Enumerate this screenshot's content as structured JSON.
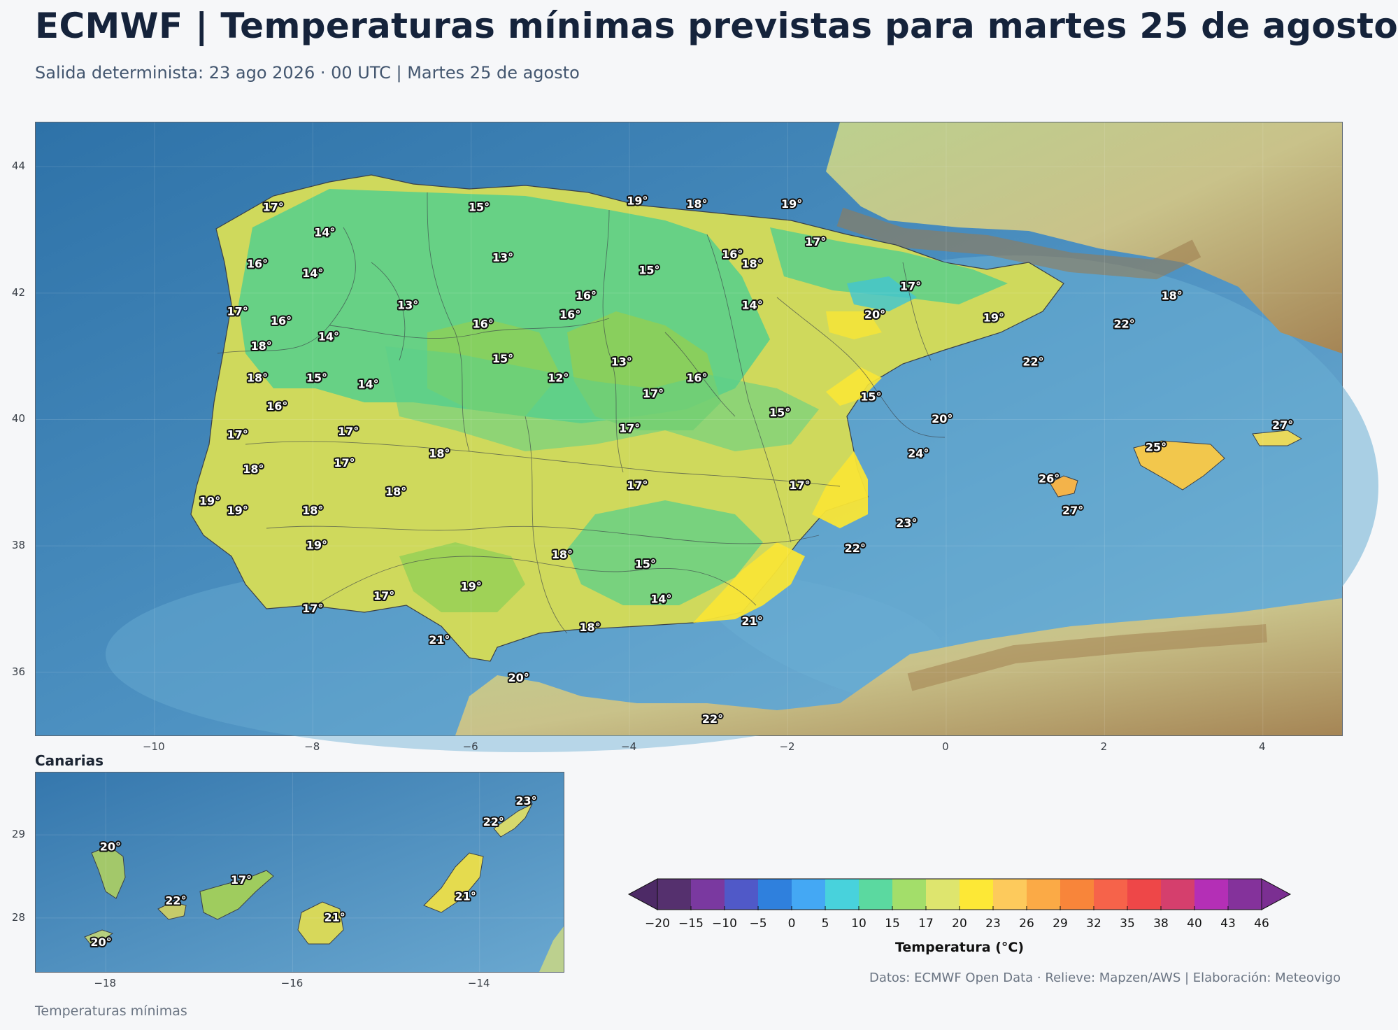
{
  "header": {
    "title": "ECMWF | Temperaturas mínimas previstas para martes 25 de agosto",
    "subtitle": "Salida determinista: 23 ago 2026 · 00 UTC  |  Martes 25 de agosto"
  },
  "main_map": {
    "extent": {
      "lon": [
        -11.5,
        5.0
      ],
      "lat": [
        35.0,
        44.7
      ]
    },
    "x_ticks": [
      {
        "value": -10,
        "label": "−10"
      },
      {
        "value": -8,
        "label": "−8"
      },
      {
        "value": -6,
        "label": "−6"
      },
      {
        "value": -4,
        "label": "−4"
      },
      {
        "value": -2,
        "label": "−2"
      },
      {
        "value": 0,
        "label": "0"
      },
      {
        "value": 2,
        "label": "2"
      },
      {
        "value": 4,
        "label": "4"
      }
    ],
    "y_ticks": [
      {
        "value": 36,
        "label": "36"
      },
      {
        "value": 38,
        "label": "38"
      },
      {
        "value": 40,
        "label": "40"
      },
      {
        "value": 42,
        "label": "42"
      },
      {
        "value": 44,
        "label": "44"
      }
    ],
    "stations": [
      {
        "lon": -8.5,
        "lat": 43.35,
        "label": "17°"
      },
      {
        "lon": -5.9,
        "lat": 43.35,
        "label": "15°"
      },
      {
        "lon": -3.9,
        "lat": 43.45,
        "label": "19°"
      },
      {
        "lon": -3.15,
        "lat": 43.4,
        "label": "18°"
      },
      {
        "lon": -1.95,
        "lat": 43.4,
        "label": "19°"
      },
      {
        "lon": -7.85,
        "lat": 42.95,
        "label": "14°"
      },
      {
        "lon": -5.6,
        "lat": 42.55,
        "label": "13°"
      },
      {
        "lon": -2.7,
        "lat": 42.6,
        "label": "16°"
      },
      {
        "lon": -2.45,
        "lat": 42.45,
        "label": "18°"
      },
      {
        "lon": -1.65,
        "lat": 42.8,
        "label": "17°"
      },
      {
        "lon": -8.7,
        "lat": 42.45,
        "label": "16°"
      },
      {
        "lon": -8.0,
        "lat": 42.3,
        "label": "14°"
      },
      {
        "lon": -3.75,
        "lat": 42.35,
        "label": "15°"
      },
      {
        "lon": -4.55,
        "lat": 41.95,
        "label": "16°"
      },
      {
        "lon": -0.45,
        "lat": 42.1,
        "label": "17°"
      },
      {
        "lon": 2.85,
        "lat": 41.95,
        "label": "18°"
      },
      {
        "lon": -8.95,
        "lat": 41.7,
        "label": "17°"
      },
      {
        "lon": -8.4,
        "lat": 41.55,
        "label": "16°"
      },
      {
        "lon": -6.8,
        "lat": 41.8,
        "label": "13°"
      },
      {
        "lon": -5.85,
        "lat": 41.5,
        "label": "16°"
      },
      {
        "lon": -4.75,
        "lat": 41.65,
        "label": "16°"
      },
      {
        "lon": -2.45,
        "lat": 41.8,
        "label": "14°"
      },
      {
        "lon": -0.9,
        "lat": 41.65,
        "label": "20°"
      },
      {
        "lon": 0.6,
        "lat": 41.6,
        "label": "19°"
      },
      {
        "lon": 2.25,
        "lat": 41.5,
        "label": "22°"
      },
      {
        "lon": -7.8,
        "lat": 41.3,
        "label": "14°"
      },
      {
        "lon": -8.65,
        "lat": 41.15,
        "label": "18°"
      },
      {
        "lon": -5.6,
        "lat": 40.95,
        "label": "15°"
      },
      {
        "lon": -4.1,
        "lat": 40.9,
        "label": "13°"
      },
      {
        "lon": 1.1,
        "lat": 40.9,
        "label": "22°"
      },
      {
        "lon": -8.7,
        "lat": 40.65,
        "label": "18°"
      },
      {
        "lon": -7.95,
        "lat": 40.65,
        "label": "15°"
      },
      {
        "lon": -7.3,
        "lat": 40.55,
        "label": "14°"
      },
      {
        "lon": -4.9,
        "lat": 40.65,
        "label": "12°"
      },
      {
        "lon": -3.15,
        "lat": 40.65,
        "label": "16°"
      },
      {
        "lon": -3.7,
        "lat": 40.4,
        "label": "17°"
      },
      {
        "lon": -0.95,
        "lat": 40.35,
        "label": "15°"
      },
      {
        "lon": -8.45,
        "lat": 40.2,
        "label": "16°"
      },
      {
        "lon": -2.1,
        "lat": 40.1,
        "label": "15°"
      },
      {
        "lon": -0.05,
        "lat": 40.0,
        "label": "20°"
      },
      {
        "lon": -8.95,
        "lat": 39.75,
        "label": "17°"
      },
      {
        "lon": -7.55,
        "lat": 39.8,
        "label": "17°"
      },
      {
        "lon": -4.0,
        "lat": 39.85,
        "label": "17°"
      },
      {
        "lon": 4.25,
        "lat": 39.9,
        "label": "27°"
      },
      {
        "lon": -6.4,
        "lat": 39.45,
        "label": "18°"
      },
      {
        "lon": -0.35,
        "lat": 39.45,
        "label": "24°"
      },
      {
        "lon": 2.65,
        "lat": 39.55,
        "label": "25°"
      },
      {
        "lon": -8.75,
        "lat": 39.2,
        "label": "18°"
      },
      {
        "lon": -7.6,
        "lat": 39.3,
        "label": "17°"
      },
      {
        "lon": 1.3,
        "lat": 39.05,
        "label": "26°"
      },
      {
        "lon": -6.95,
        "lat": 38.85,
        "label": "18°"
      },
      {
        "lon": -3.9,
        "lat": 38.95,
        "label": "17°"
      },
      {
        "lon": -1.85,
        "lat": 38.95,
        "label": "17°"
      },
      {
        "lon": -9.3,
        "lat": 38.7,
        "label": "19°"
      },
      {
        "lon": -8.95,
        "lat": 38.55,
        "label": "19°"
      },
      {
        "lon": -8.0,
        "lat": 38.55,
        "label": "18°"
      },
      {
        "lon": 1.6,
        "lat": 38.55,
        "label": "27°"
      },
      {
        "lon": -0.5,
        "lat": 38.35,
        "label": "23°"
      },
      {
        "lon": -7.95,
        "lat": 38.0,
        "label": "19°"
      },
      {
        "lon": -1.15,
        "lat": 37.95,
        "label": "22°"
      },
      {
        "lon": -4.85,
        "lat": 37.85,
        "label": "18°"
      },
      {
        "lon": -3.8,
        "lat": 37.7,
        "label": "15°"
      },
      {
        "lon": -6.0,
        "lat": 37.35,
        "label": "19°"
      },
      {
        "lon": -7.1,
        "lat": 37.2,
        "label": "17°"
      },
      {
        "lon": -3.6,
        "lat": 37.15,
        "label": "14°"
      },
      {
        "lon": -8.0,
        "lat": 37.0,
        "label": "17°"
      },
      {
        "lon": -2.45,
        "lat": 36.8,
        "label": "21°"
      },
      {
        "lon": -4.5,
        "lat": 36.7,
        "label": "18°"
      },
      {
        "lon": -6.4,
        "lat": 36.5,
        "label": "21°"
      },
      {
        "lon": -5.4,
        "lat": 35.9,
        "label": "20°"
      },
      {
        "lon": -2.95,
        "lat": 35.25,
        "label": "22°"
      }
    ]
  },
  "inset_map": {
    "title": "Canarias",
    "extent": {
      "lon": [
        -18.75,
        -13.1
      ],
      "lat": [
        27.35,
        29.75
      ]
    },
    "x_ticks": [
      {
        "value": -18,
        "label": "−18"
      },
      {
        "value": -16,
        "label": "−16"
      },
      {
        "value": -14,
        "label": "−14"
      }
    ],
    "y_ticks": [
      {
        "value": 28,
        "label": "28"
      },
      {
        "value": 29,
        "label": "29"
      }
    ],
    "stations": [
      {
        "lon": -13.5,
        "lat": 29.4,
        "label": "23°"
      },
      {
        "lon": -13.85,
        "lat": 29.15,
        "label": "22°"
      },
      {
        "lon": -17.95,
        "lat": 28.85,
        "label": "20°"
      },
      {
        "lon": -14.15,
        "lat": 28.25,
        "label": "21°"
      },
      {
        "lon": -16.55,
        "lat": 28.45,
        "label": "17°"
      },
      {
        "lon": -17.25,
        "lat": 28.2,
        "label": "22°"
      },
      {
        "lon": -15.55,
        "lat": 28.0,
        "label": "21°"
      },
      {
        "lon": -18.05,
        "lat": 27.7,
        "label": "20°"
      }
    ]
  },
  "colorbar": {
    "label": "Temperatura (°C)",
    "ticks": [
      "−20",
      "−15",
      "−10",
      "−5",
      "0",
      "5",
      "10",
      "15",
      "17",
      "20",
      "23",
      "26",
      "29",
      "32",
      "35",
      "38",
      "40",
      "43",
      "46"
    ],
    "colors": [
      "#55306e",
      "#7a39a0",
      "#5059c8",
      "#2f80dd",
      "#44a8f4",
      "#48d2dc",
      "#5bd9a0",
      "#a3de6a",
      "#dee56e",
      "#fde836",
      "#fdca5c",
      "#fbaa46",
      "#f8853a",
      "#f6634a",
      "#ee4748",
      "#d53f6d",
      "#b42fb6",
      "#84329b"
    ],
    "under_color": "#4d2a66",
    "over_color": "#7b2f92"
  },
  "footer": {
    "credits": "Datos: ECMWF Open Data · Relieve: Mapzen/AWS  |  Elaboración: Meteovigo",
    "note": "Temperaturas mínimas"
  }
}
